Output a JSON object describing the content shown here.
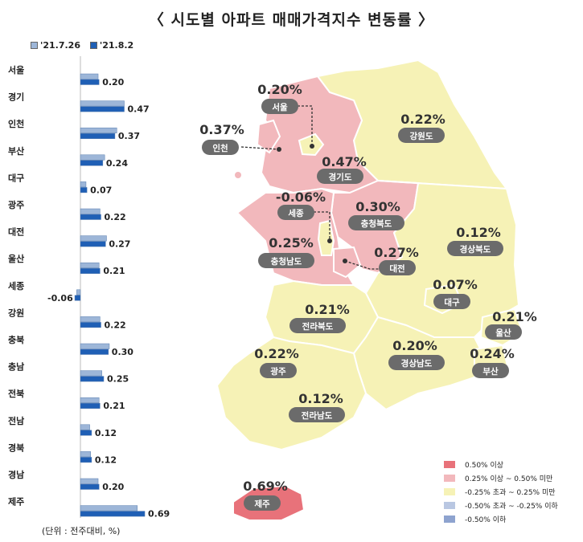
{
  "title": "〈 시도별 아파트 매매가격지수 변동률 〉",
  "unit_note": "(단위 : 전주대비, %)",
  "colors": {
    "prev_week": "#9db6d8",
    "this_week": "#1f5fb5",
    "map_high": "#e8727a",
    "map_mid_high": "#f2b8bc",
    "map_mid": "#f6f2b6",
    "map_low": "#b9c7e2",
    "map_lowest": "#8ea3cf",
    "label_bg": "#6b6b6b"
  },
  "chart_data": {
    "type": "bar",
    "orientation": "horizontal",
    "categories": [
      "서울",
      "경기",
      "인천",
      "부산",
      "대구",
      "광주",
      "대전",
      "울산",
      "세종",
      "강원",
      "충북",
      "충남",
      "전북",
      "전남",
      "경북",
      "경남",
      "제주"
    ],
    "series": [
      {
        "name": "'21.7.26",
        "values": [
          0.19,
          0.47,
          0.39,
          0.26,
          0.06,
          0.21,
          0.28,
          0.2,
          -0.04,
          0.21,
          0.31,
          0.23,
          0.2,
          0.1,
          0.11,
          0.19,
          0.61
        ]
      },
      {
        "name": "'21.8.2",
        "values": [
          0.2,
          0.47,
          0.37,
          0.24,
          0.07,
          0.22,
          0.27,
          0.21,
          -0.06,
          0.22,
          0.3,
          0.25,
          0.21,
          0.12,
          0.12,
          0.2,
          0.69
        ]
      }
    ],
    "value_labels": [
      "0.20",
      "0.47",
      "0.37",
      "0.24",
      "0.07",
      "0.22",
      "0.27",
      "0.21",
      "-0.06",
      "0.22",
      "0.30",
      "0.25",
      "0.21",
      "0.12",
      "0.12",
      "0.20",
      "0.69"
    ]
  },
  "map": {
    "regions": [
      {
        "name": "서울",
        "value": "0.20%",
        "class": "mid"
      },
      {
        "name": "인천",
        "value": "0.37%",
        "class": "mid_high"
      },
      {
        "name": "경기도",
        "value": "0.47%",
        "class": "mid_high"
      },
      {
        "name": "강원도",
        "value": "0.22%",
        "class": "mid"
      },
      {
        "name": "세종",
        "value": "-0.06%",
        "class": "mid"
      },
      {
        "name": "충청북도",
        "value": "0.30%",
        "class": "mid_high"
      },
      {
        "name": "충청남도",
        "value": "0.25%",
        "class": "mid_high"
      },
      {
        "name": "대전",
        "value": "0.27%",
        "class": "mid_high"
      },
      {
        "name": "경상북도",
        "value": "0.12%",
        "class": "mid"
      },
      {
        "name": "대구",
        "value": "0.07%",
        "class": "mid"
      },
      {
        "name": "전라북도",
        "value": "0.21%",
        "class": "mid"
      },
      {
        "name": "울산",
        "value": "0.21%",
        "class": "mid"
      },
      {
        "name": "광주",
        "value": "0.22%",
        "class": "mid"
      },
      {
        "name": "경상남도",
        "value": "0.20%",
        "class": "mid"
      },
      {
        "name": "부산",
        "value": "0.24%",
        "class": "mid"
      },
      {
        "name": "전라남도",
        "value": "0.12%",
        "class": "mid"
      },
      {
        "name": "제주",
        "value": "0.69%",
        "class": "high"
      }
    ],
    "legend": [
      {
        "label": "0.50% 이상",
        "class": "high"
      },
      {
        "label": "0.25% 이상 ~ 0.50% 미만",
        "class": "mid_high"
      },
      {
        "label": "-0.25% 초과 ~ 0.25% 미만",
        "class": "mid"
      },
      {
        "label": "-0.50% 초과 ~ -0.25% 이하",
        "class": "low"
      },
      {
        "label": "-0.50% 이하",
        "class": "lowest"
      }
    ]
  }
}
